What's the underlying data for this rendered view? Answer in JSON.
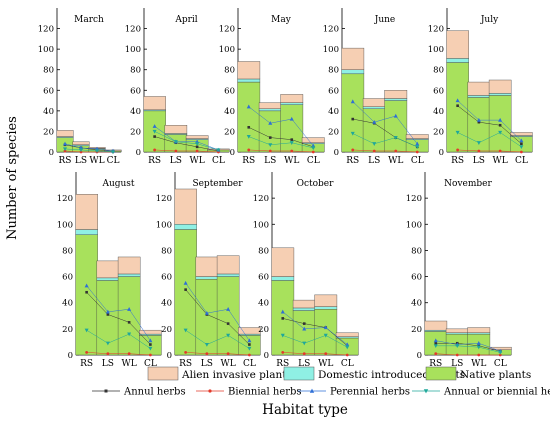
{
  "chart_data": {
    "type": "bar",
    "ylabel": "Number of species",
    "xlabel": "Habitat type",
    "categories": [
      "RS",
      "LS",
      "WL",
      "CL"
    ],
    "ylim": [
      0,
      140
    ],
    "yticks": [
      0,
      20,
      40,
      60,
      80,
      100,
      120
    ],
    "stacking": "stacked bars: Native plants (bottom), Domestic introduced plants, Alien invasive plants (top); line series overlaid",
    "bar_series_names": [
      "Native plants",
      "Domestic introduced plants",
      "Alien invasive plants"
    ],
    "line_series_names": [
      "Annul herbs",
      "Biennial herbs",
      "Perennial herbs",
      "Annual or biennial herbs"
    ],
    "colors": {
      "Native plants": "#a8e15c",
      "Domestic introduced plants": "#8ff0e4",
      "Alien invasive plants": "#f6cfb3",
      "Annul herbs": "#333333",
      "Biennial herbs": "#e33a2a",
      "Perennial herbs": "#2e6fd6",
      "Annual or biennial herbs": "#1fa89a"
    },
    "legend_placement": "bottom",
    "panels": [
      {
        "title": "March",
        "native": [
          14,
          6,
          3,
          1
        ],
        "domestic": [
          1,
          1,
          0.5,
          0
        ],
        "alien": [
          6,
          3,
          1,
          1
        ],
        "lines": {
          "Annul herbs": [
            7,
            4,
            2,
            1
          ],
          "Biennial herbs": [
            1,
            0,
            0,
            0
          ],
          "Perennial herbs": [
            8,
            4,
            3,
            1
          ],
          "Annual or biennial herbs": [
            3,
            2,
            1,
            0
          ]
        }
      },
      {
        "title": "April",
        "native": [
          40,
          17,
          12,
          2
        ],
        "domestic": [
          1,
          1,
          1,
          0
        ],
        "alien": [
          13,
          8,
          3,
          1
        ],
        "lines": {
          "Annul herbs": [
            15,
            9,
            5,
            1
          ],
          "Biennial herbs": [
            2,
            1,
            1,
            0
          ],
          "Perennial herbs": [
            25,
            10,
            10,
            2
          ],
          "Annual or biennial herbs": [
            20,
            10,
            8,
            2
          ]
        }
      },
      {
        "title": "May",
        "native": [
          68,
          40,
          46,
          8
        ],
        "domestic": [
          3,
          2,
          2,
          1
        ],
        "alien": [
          17,
          6,
          8,
          5
        ],
        "lines": {
          "Annul herbs": [
            24,
            14,
            12,
            5
          ],
          "Biennial herbs": [
            2,
            1,
            1,
            0
          ],
          "Perennial herbs": [
            44,
            28,
            32,
            6
          ],
          "Annual or biennial herbs": [
            15,
            7,
            9,
            4
          ]
        }
      },
      {
        "title": "June",
        "native": [
          76,
          42,
          50,
          12
        ],
        "domestic": [
          4,
          2,
          2,
          1
        ],
        "alien": [
          21,
          8,
          8,
          4
        ],
        "lines": {
          "Annul herbs": [
            32,
            28,
            14,
            5
          ],
          "Biennial herbs": [
            2,
            1,
            1,
            0
          ],
          "Perennial herbs": [
            49,
            29,
            35,
            8
          ],
          "Annual or biennial herbs": [
            18,
            8,
            14,
            5
          ]
        }
      },
      {
        "title": "July",
        "native": [
          87,
          53,
          55,
          15
        ],
        "domestic": [
          4,
          2,
          2,
          1
        ],
        "alien": [
          27,
          13,
          13,
          3
        ],
        "lines": {
          "Annul herbs": [
            45,
            29,
            26,
            8
          ],
          "Biennial herbs": [
            2,
            1,
            1,
            0
          ],
          "Perennial herbs": [
            50,
            31,
            31,
            11
          ],
          "Annual or biennial herbs": [
            19,
            9,
            19,
            5
          ]
        }
      },
      {
        "title": "August",
        "native": [
          92,
          57,
          60,
          15
        ],
        "domestic": [
          4,
          2,
          2,
          1
        ],
        "alien": [
          27,
          13,
          13,
          3
        ],
        "lines": {
          "Annul herbs": [
            48,
            31,
            25,
            8
          ],
          "Biennial herbs": [
            2,
            1,
            1,
            0
          ],
          "Perennial herbs": [
            53,
            33,
            35,
            11
          ],
          "Annual or biennial herbs": [
            19,
            9,
            16,
            5
          ]
        }
      },
      {
        "title": "September",
        "native": [
          96,
          58,
          60,
          15
        ],
        "domestic": [
          4,
          2,
          2,
          1
        ],
        "alien": [
          27,
          15,
          14,
          5
        ],
        "lines": {
          "Annul herbs": [
            50,
            31,
            24,
            8
          ],
          "Biennial herbs": [
            2,
            1,
            1,
            0
          ],
          "Perennial herbs": [
            55,
            32,
            35,
            11
          ],
          "Annual or biennial herbs": [
            19,
            8,
            15,
            5
          ]
        }
      },
      {
        "title": "October",
        "native": [
          57,
          34,
          35,
          13
        ],
        "domestic": [
          3,
          2,
          2,
          1
        ],
        "alien": [
          22,
          6,
          9,
          3
        ],
        "lines": {
          "Annul herbs": [
            28,
            24,
            21,
            7
          ],
          "Biennial herbs": [
            2,
            1,
            1,
            0
          ],
          "Perennial herbs": [
            33,
            20,
            21,
            8
          ],
          "Annual or biennial herbs": [
            15,
            9,
            15,
            6
          ]
        }
      },
      {
        "title": "November",
        "native": [
          18,
          16,
          16,
          4
        ],
        "domestic": [
          1,
          1,
          1,
          0
        ],
        "alien": [
          7,
          3,
          4,
          2
        ],
        "lines": {
          "Annul herbs": [
            9,
            9,
            7,
            3
          ],
          "Biennial herbs": [
            1,
            0,
            0,
            0
          ],
          "Perennial herbs": [
            11,
            8,
            9,
            3
          ],
          "Annual or biennial herbs": [
            7,
            7,
            6,
            2
          ]
        }
      }
    ]
  }
}
